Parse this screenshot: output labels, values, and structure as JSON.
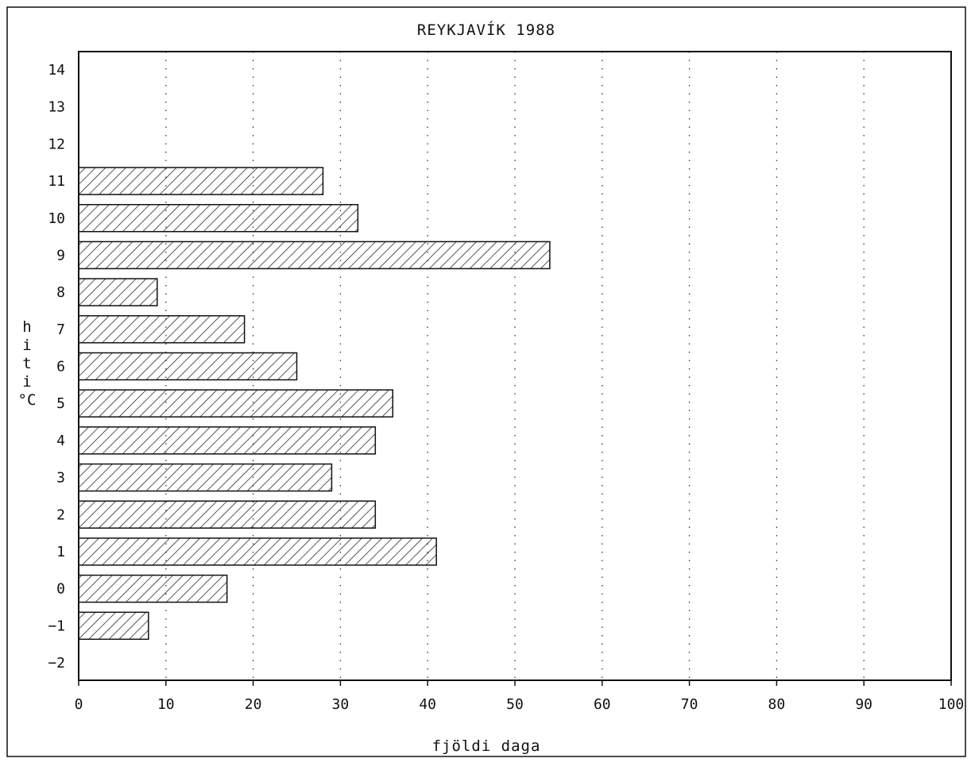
{
  "chart_data": {
    "type": "bar",
    "orientation": "horizontal",
    "title": "REYKJAVÍK 1988",
    "xlabel": "fjöldi daga",
    "ylabel": [
      "h",
      "i",
      "t",
      "i",
      "°C"
    ],
    "xlim": [
      0,
      100
    ],
    "ylim": [
      -2,
      14
    ],
    "x_ticks": [
      0,
      10,
      20,
      30,
      40,
      50,
      60,
      70,
      80,
      90,
      100
    ],
    "y_ticks": [
      -2,
      -1,
      0,
      1,
      2,
      3,
      4,
      5,
      6,
      7,
      8,
      9,
      10,
      11,
      12,
      13,
      14
    ],
    "categories": [
      -1,
      0,
      1,
      2,
      3,
      4,
      5,
      6,
      7,
      8,
      9,
      10,
      11
    ],
    "values": [
      8,
      17,
      41,
      34,
      29,
      34,
      36,
      25,
      19,
      9,
      54,
      32,
      28
    ],
    "grid": "vertical dotted",
    "bar_fill": "diagonal hatch",
    "colors": {
      "ink": "#111111",
      "background": "#ffffff"
    }
  }
}
